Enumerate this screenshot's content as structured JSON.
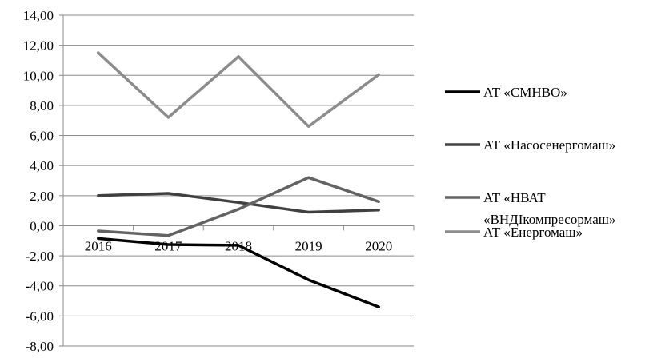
{
  "chart_data": {
    "type": "line",
    "title": "",
    "xlabel": "",
    "ylabel": "",
    "categories": [
      "2016",
      "2017",
      "2018",
      "2019",
      "2020"
    ],
    "ylim": [
      -8,
      14
    ],
    "ytick_step": 2,
    "ytick_labels": [
      "14,00",
      "12,00",
      "10,00",
      "8,00",
      "6,00",
      "4,00",
      "2,00",
      "0,00",
      "-2,00",
      "-4,00",
      "-6,00",
      "-8,00"
    ],
    "grid": "horizontal",
    "legend_position": "right",
    "series": [
      {
        "name": "АТ «СМНВО»",
        "values": [
          -0.85,
          -1.25,
          -1.3,
          -3.6,
          -5.4
        ],
        "color": "#000000"
      },
      {
        "name": "АТ «Насосенергомаш»",
        "values": [
          2.0,
          2.15,
          1.55,
          0.9,
          1.05
        ],
        "color": "#404040"
      },
      {
        "name": "АТ «НВАТ «ВНДІкомпресормаш»",
        "name_lines": [
          "АТ «НВАТ",
          "«ВНДІкомпресормаш»"
        ],
        "values": [
          -0.35,
          -0.65,
          1.1,
          3.2,
          1.6
        ],
        "color": "#636363"
      },
      {
        "name": "АТ «Енергомаш»",
        "values": [
          11.5,
          7.2,
          11.25,
          6.6,
          10.05
        ],
        "color": "#8c8c8c"
      }
    ]
  }
}
